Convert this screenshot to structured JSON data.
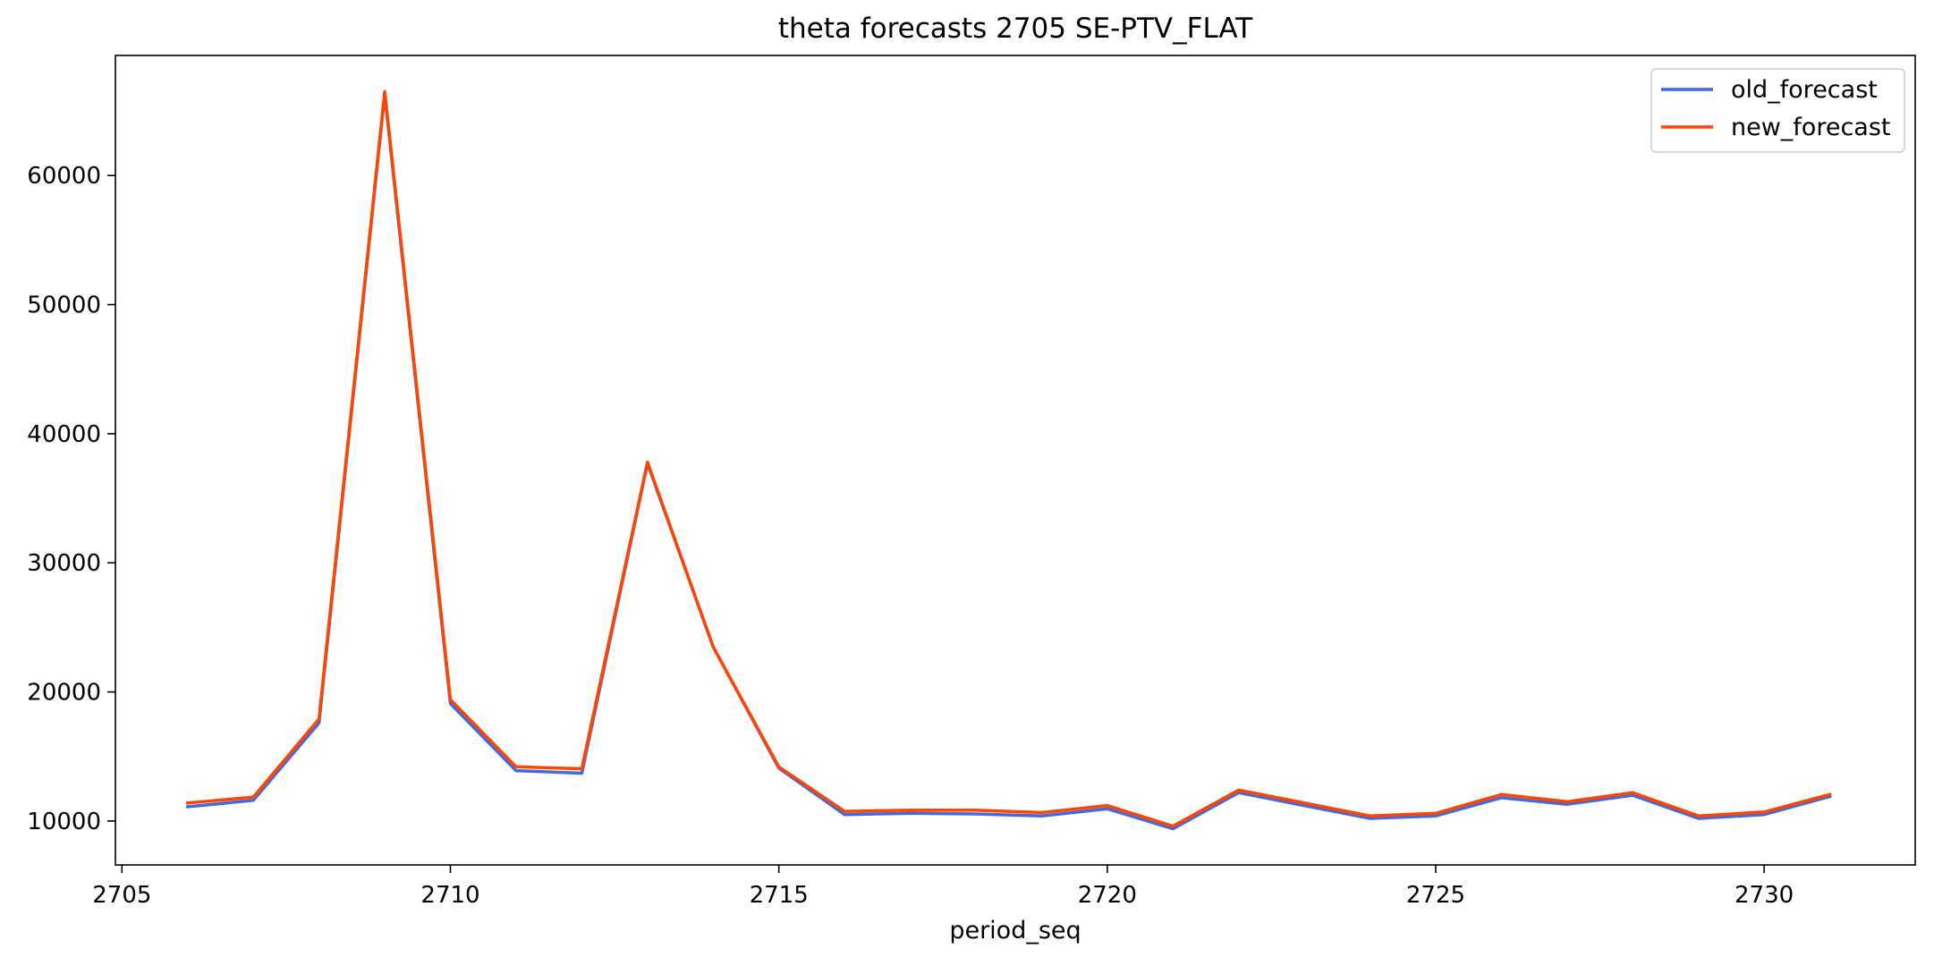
{
  "chart_data": {
    "type": "line",
    "title": "theta forecasts 2705 SE-PTV_FLAT",
    "xlabel": "period_seq",
    "ylabel": "",
    "xlim": [
      2704.9,
      2732.3
    ],
    "ylim": [
      6600,
      69300
    ],
    "xticks": [
      2705,
      2710,
      2715,
      2720,
      2725,
      2730
    ],
    "yticks": [
      10000,
      20000,
      30000,
      40000,
      50000,
      60000
    ],
    "grid": false,
    "legend": {
      "placement": "top-right"
    },
    "x": [
      2706,
      2707,
      2708,
      2709,
      2710,
      2711,
      2712,
      2713,
      2714,
      2715,
      2716,
      2717,
      2718,
      2719,
      2720,
      2721,
      2722,
      2723,
      2724,
      2725,
      2726,
      2727,
      2728,
      2729,
      2730,
      2731
    ],
    "series": [
      {
        "name": "old_forecast",
        "color": "#4169e1",
        "values": [
          11100,
          11600,
          17600,
          66300,
          19100,
          13900,
          13700,
          37700,
          23500,
          14100,
          10500,
          10600,
          10550,
          10400,
          10950,
          9400,
          12200,
          11200,
          10200,
          10400,
          11800,
          11300,
          12000,
          10200,
          10500,
          11900
        ]
      },
      {
        "name": "new_forecast",
        "color": "#ff4500",
        "values": [
          11400,
          11850,
          17900,
          66500,
          19400,
          14200,
          14050,
          37800,
          23500,
          14200,
          10750,
          10850,
          10850,
          10650,
          11200,
          9600,
          12400,
          11400,
          10400,
          10600,
          12050,
          11500,
          12200,
          10400,
          10700,
          12050
        ]
      }
    ]
  }
}
